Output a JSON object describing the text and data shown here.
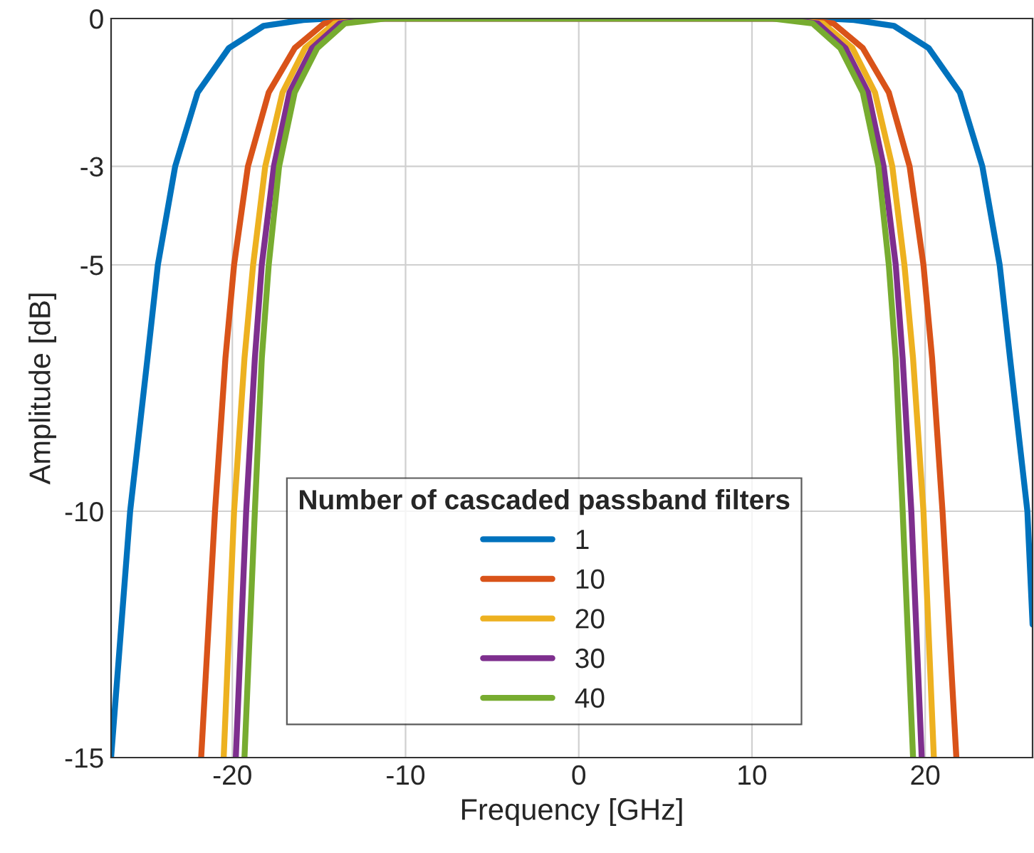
{
  "chart_data": {
    "type": "line",
    "xlabel": "Frequency [GHz]",
    "ylabel": "Amplitude [dB]",
    "legend_title": "Number of cascaded passband filters",
    "xlim": [
      -27,
      26.2
    ],
    "ylim": [
      -15,
      0
    ],
    "xticks": [
      -20,
      -10,
      0,
      10,
      20
    ],
    "yticks": [
      -15,
      -10,
      -5,
      -3,
      0
    ],
    "grid": true,
    "legend": "bottom",
    "marker": "none",
    "line_style": "solid",
    "series": [
      {
        "name": "1",
        "color": "#0072bd",
        "x": [
          -27.0,
          -25.9,
          -24.9,
          -24.3,
          -23.3,
          -22.0,
          -20.2,
          -18.2,
          -15.9,
          -14.4,
          14.4,
          15.9,
          18.2,
          20.2,
          22.0,
          23.3,
          24.3,
          24.9,
          25.9,
          26.2
        ],
        "values": [
          -15.0,
          -10.0,
          -6.9,
          -5.0,
          -3.0,
          -1.5,
          -0.6,
          -0.15,
          -0.03,
          0,
          0,
          -0.03,
          -0.15,
          -0.6,
          -1.5,
          -3.0,
          -5.0,
          -6.9,
          -10.0,
          -12.3
        ]
      },
      {
        "name": "10",
        "color": "#d95319",
        "x": [
          -21.8,
          -21.0,
          -20.4,
          -19.9,
          -19.1,
          -17.9,
          -16.4,
          -14.7,
          -12.4,
          12.4,
          14.7,
          16.4,
          17.9,
          19.1,
          19.9,
          20.4,
          21.0,
          21.8
        ],
        "values": [
          -15.0,
          -10.0,
          -6.9,
          -5.0,
          -3.0,
          -1.5,
          -0.6,
          -0.1,
          0,
          0,
          -0.1,
          -0.6,
          -1.5,
          -3.0,
          -5.0,
          -6.9,
          -10.0,
          -15.0
        ]
      },
      {
        "name": "20",
        "color": "#edb120",
        "x": [
          -20.5,
          -19.9,
          -19.3,
          -18.8,
          -18.1,
          -17.1,
          -15.8,
          -14.1,
          -11.8,
          11.8,
          14.1,
          15.8,
          17.1,
          18.1,
          18.8,
          19.3,
          19.9,
          20.5
        ],
        "values": [
          -15.0,
          -10.0,
          -6.9,
          -5.0,
          -3.0,
          -1.5,
          -0.6,
          -0.1,
          0,
          0,
          -0.1,
          -0.6,
          -1.5,
          -3.0,
          -5.0,
          -6.9,
          -10.0,
          -15.0
        ]
      },
      {
        "name": "30",
        "color": "#7e2f8e",
        "x": [
          -19.8,
          -19.2,
          -18.7,
          -18.3,
          -17.6,
          -16.7,
          -15.4,
          -13.8,
          -11.5,
          11.5,
          13.8,
          15.4,
          16.7,
          17.6,
          18.3,
          18.7,
          19.2,
          19.8
        ],
        "values": [
          -15.0,
          -10.0,
          -6.9,
          -5.0,
          -3.0,
          -1.5,
          -0.6,
          -0.1,
          0,
          0,
          -0.1,
          -0.6,
          -1.5,
          -3.0,
          -5.0,
          -6.9,
          -10.0,
          -15.0
        ]
      },
      {
        "name": "40",
        "color": "#77ac30",
        "x": [
          -19.3,
          -18.7,
          -18.3,
          -17.9,
          -17.3,
          -16.4,
          -15.1,
          -13.5,
          -11.2,
          11.2,
          13.5,
          15.1,
          16.4,
          17.3,
          17.9,
          18.3,
          18.7,
          19.3
        ],
        "values": [
          -15.0,
          -10.0,
          -6.9,
          -5.0,
          -3.0,
          -1.5,
          -0.6,
          -0.1,
          0,
          0,
          -0.1,
          -0.6,
          -1.5,
          -3.0,
          -5.0,
          -6.9,
          -10.0,
          -15.0
        ]
      }
    ]
  }
}
